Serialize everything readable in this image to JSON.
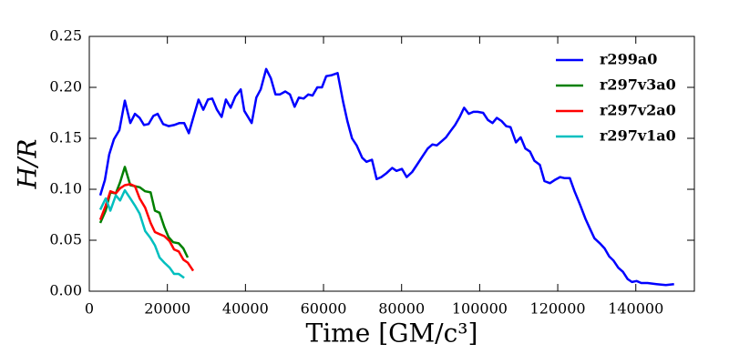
{
  "chart_data": {
    "type": "line",
    "xlabel": "Time [GM/c³]",
    "ylabel": "H/R",
    "xlim": [
      0,
      155000
    ],
    "ylim": [
      0,
      0.25
    ],
    "xticks": [
      0,
      20000,
      40000,
      60000,
      80000,
      100000,
      120000,
      140000
    ],
    "yticks": [
      {
        "value": 0,
        "label": "0.00"
      },
      0.05,
      {
        "value": 0.1,
        "label": "0.10"
      },
      0.15,
      {
        "value": 0.2,
        "label": "0.20"
      },
      0.25
    ],
    "legend": "upper right",
    "series": [
      {
        "name": "r299a0",
        "color": "#0000ff",
        "x": [
          2800,
          4000,
          5100,
          6300,
          7700,
          9100,
          10500,
          11700,
          12900,
          14000,
          15200,
          16400,
          17500,
          18900,
          20300,
          21700,
          23100,
          24300,
          25500,
          26600,
          28000,
          29200,
          30400,
          31500,
          32700,
          33900,
          35000,
          36200,
          37400,
          38800,
          39700,
          41600,
          42800,
          43900,
          45300,
          46500,
          47700,
          48800,
          50200,
          51400,
          52600,
          53700,
          54900,
          56100,
          57200,
          58400,
          59600,
          60700,
          62100,
          63600,
          65000,
          66100,
          67300,
          68500,
          69900,
          71000,
          72400,
          73600,
          74800,
          76200,
          77600,
          78700,
          80100,
          81300,
          82700,
          84100,
          85300,
          86700,
          87900,
          89000,
          90200,
          91400,
          92500,
          93700,
          94900,
          96000,
          97200,
          98400,
          99500,
          100900,
          102100,
          103300,
          104400,
          105600,
          106800,
          107900,
          109300,
          110500,
          111700,
          112900,
          114000,
          115400,
          116600,
          118000,
          119200,
          120600,
          121700,
          123100,
          124300,
          125700,
          127100,
          128300,
          129400,
          130800,
          132000,
          133200,
          134300,
          135500,
          136700,
          137900,
          139000,
          140200,
          141400,
          143000,
          145300,
          147700,
          149800
        ],
        "values": [
          0.094,
          0.109,
          0.134,
          0.149,
          0.158,
          0.187,
          0.165,
          0.174,
          0.17,
          0.163,
          0.164,
          0.172,
          0.174,
          0.164,
          0.162,
          0.163,
          0.165,
          0.165,
          0.155,
          0.17,
          0.188,
          0.178,
          0.188,
          0.189,
          0.178,
          0.171,
          0.188,
          0.18,
          0.191,
          0.198,
          0.177,
          0.165,
          0.19,
          0.198,
          0.218,
          0.209,
          0.193,
          0.193,
          0.196,
          0.193,
          0.181,
          0.19,
          0.189,
          0.193,
          0.192,
          0.2,
          0.2,
          0.211,
          0.212,
          0.214,
          0.186,
          0.167,
          0.15,
          0.143,
          0.131,
          0.127,
          0.129,
          0.11,
          0.112,
          0.116,
          0.121,
          0.118,
          0.12,
          0.112,
          0.117,
          0.125,
          0.132,
          0.14,
          0.144,
          0.143,
          0.147,
          0.151,
          0.157,
          0.163,
          0.171,
          0.18,
          0.174,
          0.176,
          0.176,
          0.175,
          0.168,
          0.165,
          0.17,
          0.167,
          0.162,
          0.161,
          0.146,
          0.151,
          0.14,
          0.137,
          0.128,
          0.124,
          0.108,
          0.106,
          0.109,
          0.112,
          0.111,
          0.111,
          0.098,
          0.085,
          0.071,
          0.061,
          0.052,
          0.047,
          0.042,
          0.034,
          0.03,
          0.023,
          0.019,
          0.012,
          0.009,
          0.01,
          0.008,
          0.008,
          0.007,
          0.006,
          0.007
        ]
      },
      {
        "name": "r297v3a0",
        "color": "#008000",
        "x": [
          2800,
          4200,
          5400,
          6800,
          7900,
          9100,
          10500,
          11700,
          12900,
          14300,
          15700,
          16800,
          18000,
          19200,
          20300,
          21500,
          22900,
          24100,
          25200
        ],
        "values": [
          0.067,
          0.079,
          0.097,
          0.096,
          0.107,
          0.122,
          0.104,
          0.103,
          0.102,
          0.098,
          0.097,
          0.079,
          0.077,
          0.063,
          0.053,
          0.048,
          0.047,
          0.042,
          0.033
        ]
      },
      {
        "name": "r297v2a0",
        "color": "#ff0000",
        "x": [
          2800,
          4200,
          5400,
          6800,
          7900,
          9100,
          10500,
          11700,
          12900,
          14300,
          15700,
          16800,
          18000,
          19200,
          20600,
          21700,
          22900,
          24100,
          25200,
          26600
        ],
        "values": [
          0.07,
          0.084,
          0.098,
          0.096,
          0.101,
          0.104,
          0.105,
          0.103,
          0.091,
          0.082,
          0.067,
          0.058,
          0.056,
          0.054,
          0.049,
          0.041,
          0.039,
          0.031,
          0.028,
          0.02
        ]
      },
      {
        "name": "r297v1a0",
        "color": "#00bfbf",
        "x": [
          2800,
          4200,
          5400,
          6800,
          7900,
          9100,
          10500,
          11700,
          12900,
          14300,
          15700,
          16800,
          18000,
          19200,
          20600,
          21700,
          22900,
          24300
        ],
        "values": [
          0.08,
          0.091,
          0.079,
          0.094,
          0.089,
          0.099,
          0.091,
          0.084,
          0.076,
          0.059,
          0.052,
          0.045,
          0.033,
          0.028,
          0.023,
          0.017,
          0.017,
          0.013
        ]
      }
    ]
  }
}
